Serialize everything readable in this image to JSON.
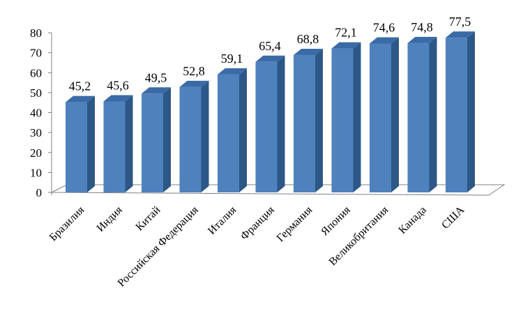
{
  "chart_data": {
    "type": "bar",
    "style": "3d-column",
    "categories": [
      "Бразилия",
      "Индия",
      "Китай",
      "Российская Федерация",
      "Италия",
      "Франция",
      "Германия",
      "Япония",
      "Великобритания",
      "Канада",
      "США"
    ],
    "values": [
      45.2,
      45.6,
      49.5,
      52.8,
      59.1,
      65.4,
      68.8,
      72.1,
      74.6,
      74.8,
      77.5
    ],
    "data_labels": [
      "45,2",
      "45,6",
      "49,5",
      "52,8",
      "59,1",
      "65,4",
      "68,8",
      "72,1",
      "74,6",
      "74,8",
      "77,5"
    ],
    "yticks": [
      "0",
      "10",
      "20",
      "30",
      "40",
      "50",
      "60",
      "70",
      "80"
    ],
    "ylim": [
      0,
      80
    ],
    "title": "",
    "xlabel": "",
    "ylabel": "",
    "grid": false,
    "legend": false,
    "colors": {
      "bar_front": "#4f81bd",
      "bar_side": "#2c5787",
      "bar_top": "#3a6ba6",
      "axis": "#808080"
    }
  }
}
